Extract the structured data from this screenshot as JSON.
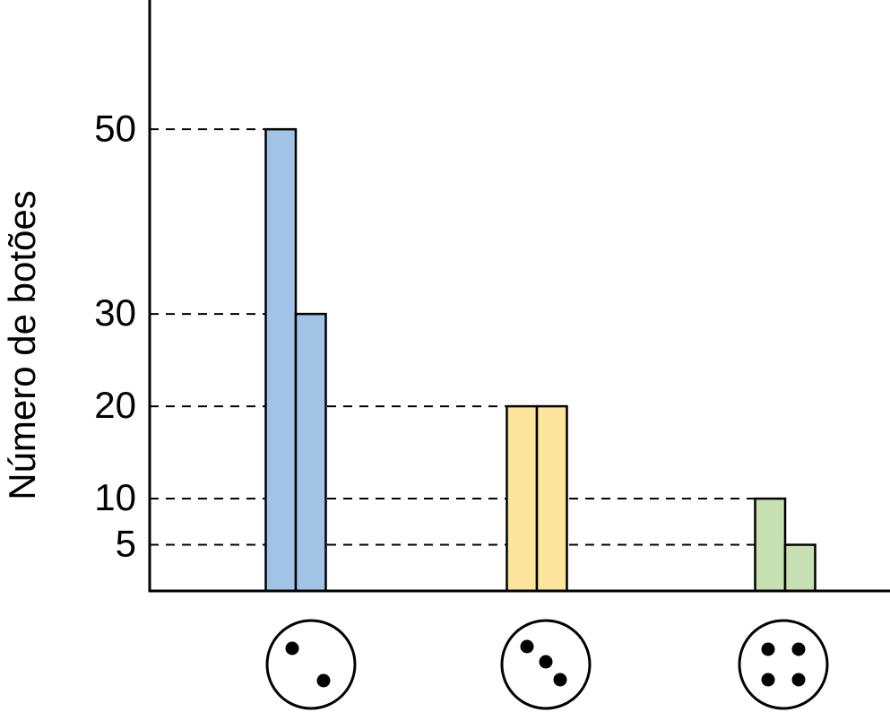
{
  "chart_data": {
    "type": "bar",
    "y_label": "Número de botões",
    "categories": [
      null,
      null,
      null
    ],
    "series": [
      {
        "values": [
          50,
          20,
          10
        ],
        "colors": [
          "#a1c4e6",
          "#fde59b",
          "#c6e0b4"
        ]
      },
      {
        "values": [
          30,
          20,
          5
        ],
        "colors": [
          "#a1c4e6",
          "#fde59b",
          "#c6e0b4"
        ]
      }
    ],
    "ylim": [
      0,
      64
    ],
    "yticks": [
      5,
      10,
      20,
      30,
      50
    ],
    "grid": true
  }
}
